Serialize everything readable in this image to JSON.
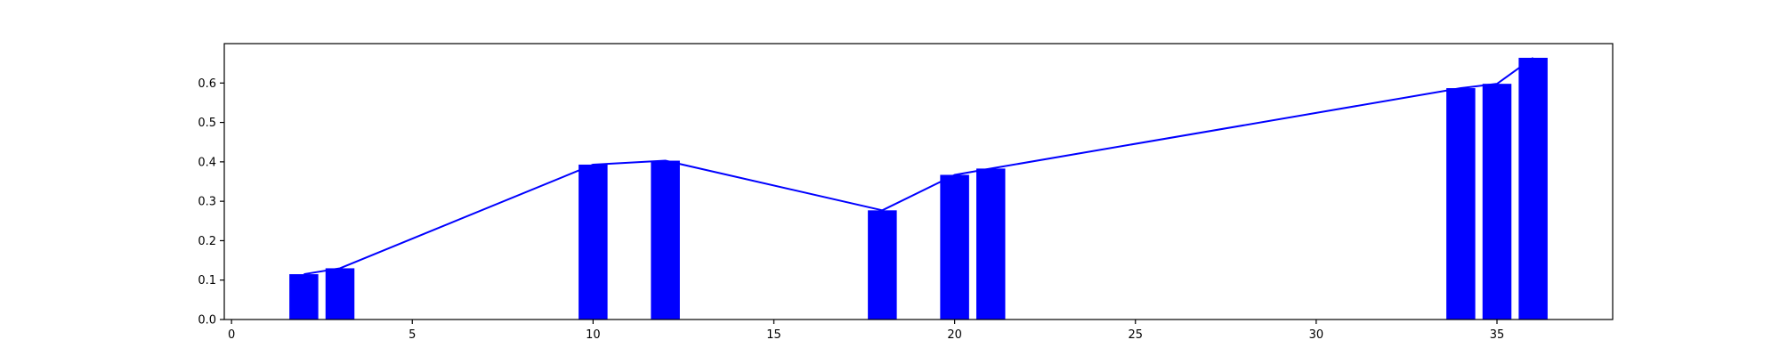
{
  "chart_data": {
    "type": "bar",
    "title": "",
    "xlabel": "",
    "ylabel": "",
    "xlim": [
      -0.2,
      38.2
    ],
    "ylim": [
      0,
      0.7
    ],
    "grid": false,
    "bar_color": "#0000ff",
    "line_color": "#0000ff",
    "bar_width": 0.8,
    "x": [
      2,
      3,
      10,
      12,
      18,
      20,
      21,
      34,
      35,
      36
    ],
    "values": [
      0.115,
      0.13,
      0.393,
      0.403,
      0.277,
      0.367,
      0.383,
      0.587,
      0.598,
      0.664
    ],
    "line": {
      "x": [
        2,
        3,
        10,
        12,
        18,
        20,
        21,
        34,
        35,
        36
      ],
      "values": [
        0.115,
        0.13,
        0.393,
        0.403,
        0.277,
        0.367,
        0.383,
        0.587,
        0.598,
        0.664
      ]
    },
    "xticks": [
      {
        "value": 0,
        "label": "0"
      },
      {
        "value": 5,
        "label": "5"
      },
      {
        "value": 10,
        "label": "10"
      },
      {
        "value": 15,
        "label": "15"
      },
      {
        "value": 20,
        "label": "20"
      },
      {
        "value": 25,
        "label": "25"
      },
      {
        "value": 30,
        "label": "30"
      },
      {
        "value": 35,
        "label": "35"
      }
    ],
    "yticks": [
      {
        "value": 0.0,
        "label": "0.0"
      },
      {
        "value": 0.1,
        "label": "0.1"
      },
      {
        "value": 0.2,
        "label": "0.2"
      },
      {
        "value": 0.3,
        "label": "0.3"
      },
      {
        "value": 0.4,
        "label": "0.4"
      },
      {
        "value": 0.5,
        "label": "0.5"
      },
      {
        "value": 0.6,
        "label": "0.6"
      }
    ]
  }
}
